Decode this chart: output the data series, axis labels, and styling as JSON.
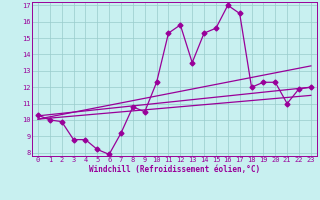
{
  "xlabel": "Windchill (Refroidissement éolien,°C)",
  "bg_color": "#c8f0f0",
  "line_color": "#990099",
  "xlim": [
    -0.5,
    23.5
  ],
  "ylim": [
    7.8,
    17.2
  ],
  "yticks": [
    8,
    9,
    10,
    11,
    12,
    13,
    14,
    15,
    16,
    17
  ],
  "xticks": [
    0,
    1,
    2,
    3,
    4,
    5,
    6,
    7,
    8,
    9,
    10,
    11,
    12,
    13,
    14,
    15,
    16,
    17,
    18,
    19,
    20,
    21,
    22,
    23
  ],
  "main_series_x": [
    0,
    1,
    2,
    3,
    4,
    5,
    6,
    7,
    8,
    9,
    10,
    11,
    12,
    13,
    14,
    15,
    16,
    17,
    18,
    19,
    20,
    21,
    22,
    23
  ],
  "main_series_y": [
    10.3,
    10.0,
    9.9,
    8.8,
    8.8,
    8.2,
    7.9,
    9.2,
    10.8,
    10.5,
    12.3,
    15.3,
    15.8,
    13.5,
    15.3,
    15.6,
    17.0,
    16.5,
    12.0,
    12.3,
    12.3,
    11.0,
    11.9,
    12.0
  ],
  "regression_lines": [
    {
      "x": [
        0,
        23
      ],
      "y": [
        10.05,
        13.3
      ]
    },
    {
      "x": [
        0,
        23
      ],
      "y": [
        10.25,
        12.0
      ]
    },
    {
      "x": [
        0,
        23
      ],
      "y": [
        10.05,
        11.5
      ]
    }
  ],
  "grid_color": "#99cccc",
  "marker": "D",
  "marker_size": 2.5,
  "line_width": 0.9,
  "font_color": "#990099",
  "tick_fontsize": 5.0,
  "xlabel_fontsize": 5.5
}
